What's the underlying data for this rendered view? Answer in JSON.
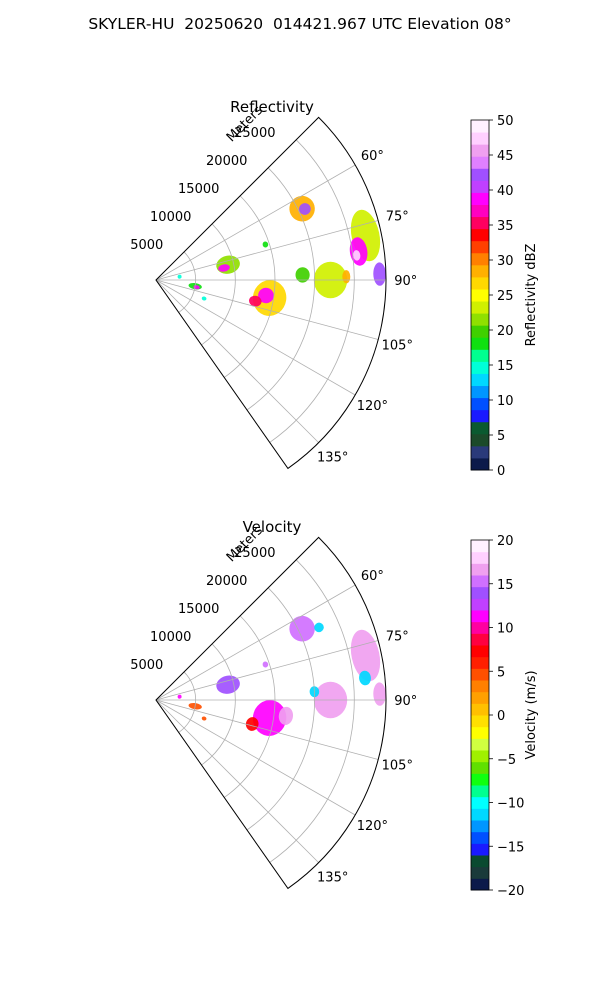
{
  "title": "SKYLER-HU  20250620  014421.967 UTC Elevation 08°",
  "chart_data": [
    {
      "type": "heatmap",
      "title": "Reflectivity",
      "projection": "polar-sector",
      "azimuth_range_deg": [
        45,
        145
      ],
      "azimuth_ticks": [
        "60°",
        "75°",
        "90°",
        "105°",
        "120°",
        "135°"
      ],
      "azimuth_tick_values": [
        60,
        75,
        90,
        105,
        120,
        135
      ],
      "range_label": "Meters",
      "range_ticks": [
        "5000",
        "10000",
        "15000",
        "20000",
        "25000"
      ],
      "range_tick_values": [
        5000,
        10000,
        15000,
        20000,
        25000
      ],
      "range_max": 29000,
      "grid": true,
      "colorbar": {
        "label": "Reflectivity dBZ",
        "min": 0,
        "max": 50,
        "ticks": [
          "0",
          "5",
          "10",
          "15",
          "20",
          "25",
          "30",
          "35",
          "40",
          "45",
          "50"
        ],
        "tick_values": [
          0,
          5,
          10,
          15,
          20,
          25,
          30,
          35,
          40,
          45,
          50
        ],
        "colors": [
          "#0c1a4a",
          "#2a3a7a",
          "#1b4a2a",
          "#0a5a30",
          "#1a1aff",
          "#0050ff",
          "#0096ff",
          "#00d8ff",
          "#00ffd8",
          "#00ff90",
          "#10e010",
          "#40d000",
          "#90e000",
          "#d0f000",
          "#ffff00",
          "#ffd800",
          "#ffb000",
          "#ff8000",
          "#ff4000",
          "#ff0000",
          "#ff0060",
          "#ff00c0",
          "#ff00ff",
          "#c040ff",
          "#a050ff",
          "#e080ff",
          "#f0a0f0",
          "#ffd0ff",
          "#fff0ff"
        ]
      },
      "echoes": [
        {
          "az": 64,
          "r": 20500,
          "da": 4.5,
          "dr": 3200,
          "value": 28
        },
        {
          "az": 64.5,
          "r": 20800,
          "da": 2.0,
          "dr": 1500,
          "value": 42
        },
        {
          "az": 78,
          "r": 27000,
          "da": 7.0,
          "dr": 3500,
          "value": 24
        },
        {
          "az": 82,
          "r": 25800,
          "da": 4.0,
          "dr": 2200,
          "value": 38
        },
        {
          "az": 83,
          "r": 25500,
          "da": 1.5,
          "dr": 900,
          "value": 47
        },
        {
          "az": 88.5,
          "r": 28200,
          "da": 3.0,
          "dr": 1600,
          "value": 42
        },
        {
          "az": 90,
          "r": 22000,
          "da": 6.0,
          "dr": 4200,
          "value": 24
        },
        {
          "az": 88,
          "r": 18500,
          "da": 3.0,
          "dr": 1800,
          "value": 20
        },
        {
          "az": 99,
          "r": 14500,
          "da": 9.0,
          "dr": 4200,
          "value": 26
        },
        {
          "az": 98,
          "r": 14000,
          "da": 4.0,
          "dr": 2000,
          "value": 38
        },
        {
          "az": 102,
          "r": 12800,
          "da": 3.0,
          "dr": 1600,
          "value": 35
        },
        {
          "az": 78,
          "r": 9300,
          "da": 7.0,
          "dr": 3000,
          "value": 22
        },
        {
          "az": 80,
          "r": 8700,
          "da": 3.0,
          "dr": 1500,
          "value": 38
        },
        {
          "az": 99,
          "r": 5000,
          "da": 4.5,
          "dr": 1700,
          "value": 18
        },
        {
          "az": 100,
          "r": 5200,
          "da": 2.0,
          "dr": 800,
          "value": 38
        },
        {
          "az": 111,
          "r": 6500,
          "da": 1.5,
          "dr": 600,
          "value": 14
        },
        {
          "az": 82,
          "r": 3000,
          "da": 2.5,
          "dr": 500,
          "value": 14
        },
        {
          "az": 72,
          "r": 14500,
          "da": 1.5,
          "dr": 700,
          "value": 18
        },
        {
          "az": 89,
          "r": 24000,
          "da": 2.0,
          "dr": 1000,
          "value": 28
        }
      ]
    },
    {
      "type": "heatmap",
      "title": "Velocity",
      "projection": "polar-sector",
      "azimuth_range_deg": [
        45,
        145
      ],
      "azimuth_ticks": [
        "60°",
        "75°",
        "90°",
        "105°",
        "120°",
        "135°"
      ],
      "azimuth_tick_values": [
        60,
        75,
        90,
        105,
        120,
        135
      ],
      "range_label": "Meters",
      "range_ticks": [
        "5000",
        "10000",
        "15000",
        "20000",
        "25000"
      ],
      "range_tick_values": [
        5000,
        10000,
        15000,
        20000,
        25000
      ],
      "range_max": 29000,
      "grid": true,
      "colorbar": {
        "label": "Velocity (m/s)",
        "min": -20,
        "max": 20,
        "ticks": [
          "−20",
          "−15",
          "−10",
          "−5",
          "0",
          "5",
          "10",
          "15",
          "20"
        ],
        "tick_values": [
          -20,
          -15,
          -10,
          -5,
          0,
          5,
          10,
          15,
          20
        ],
        "colors": [
          "#0c1a4a",
          "#1a3a3a",
          "#0a4a30",
          "#1a1aff",
          "#0050ff",
          "#0096ff",
          "#00d8ff",
          "#00ffff",
          "#00ff90",
          "#10ff10",
          "#60e000",
          "#a0f000",
          "#d0ff40",
          "#ffff00",
          "#ffe000",
          "#ffc000",
          "#ffa000",
          "#ff8000",
          "#ff5000",
          "#ff2000",
          "#ff0000",
          "#ff0040",
          "#ff00a0",
          "#ff00ff",
          "#c040ff",
          "#a050ff",
          "#d070ff",
          "#f0a0f0",
          "#ffd0ff",
          "#fff0ff"
        ]
      },
      "echoes": [
        {
          "az": 64,
          "r": 20500,
          "da": 4.5,
          "dr": 3200,
          "value": 15
        },
        {
          "az": 66,
          "r": 22500,
          "da": 1.5,
          "dr": 1200,
          "value": -11
        },
        {
          "az": 78,
          "r": 27000,
          "da": 7.0,
          "dr": 3500,
          "value": 16
        },
        {
          "az": 84,
          "r": 26500,
          "da": 2.0,
          "dr": 1500,
          "value": -12
        },
        {
          "az": 88.5,
          "r": 28200,
          "da": 3.0,
          "dr": 1600,
          "value": 17
        },
        {
          "az": 90,
          "r": 22000,
          "da": 6.0,
          "dr": 4200,
          "value": 16
        },
        {
          "az": 87,
          "r": 20000,
          "da": 2.0,
          "dr": 1200,
          "value": -12
        },
        {
          "az": 99,
          "r": 14500,
          "da": 9.0,
          "dr": 4200,
          "value": 11
        },
        {
          "az": 97,
          "r": 16500,
          "da": 4.0,
          "dr": 1800,
          "value": 16
        },
        {
          "az": 104,
          "r": 12500,
          "da": 4.0,
          "dr": 1600,
          "value": 7
        },
        {
          "az": 78,
          "r": 9300,
          "da": 7.0,
          "dr": 3000,
          "value": 14
        },
        {
          "az": 99,
          "r": 5000,
          "da": 4.5,
          "dr": 1700,
          "value": 5
        },
        {
          "az": 111,
          "r": 6500,
          "da": 1.5,
          "dr": 600,
          "value": 4
        },
        {
          "az": 82,
          "r": 3000,
          "da": 2.5,
          "dr": 500,
          "value": 11
        },
        {
          "az": 72,
          "r": 14500,
          "da": 1.5,
          "dr": 700,
          "value": 15
        }
      ]
    }
  ]
}
